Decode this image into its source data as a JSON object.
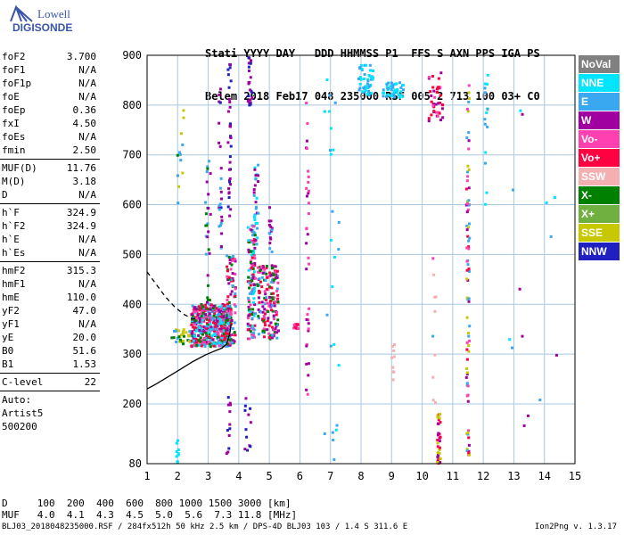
{
  "logo": {
    "line1": "Lowell",
    "line2": "DIGISONDE"
  },
  "header": {
    "labels": "Stati YYYY DAY   DDD HHMMSS P1  FFS S AXN PPS IGA PS",
    "values": "Belem 2018 Feb17 048 235000 RSF 005 2 713 100 03+ C0"
  },
  "params": {
    "g1": [
      [
        "foF2",
        "3.700"
      ],
      [
        "foF1",
        "N/A"
      ],
      [
        "foF1p",
        "N/A"
      ],
      [
        "foE",
        "N/A"
      ],
      [
        "foEp",
        "0.36"
      ],
      [
        "fxI",
        "4.50"
      ],
      [
        "foEs",
        "N/A"
      ],
      [
        "fmin",
        "2.50"
      ]
    ],
    "g2": [
      [
        "MUF(D)",
        "11.76"
      ],
      [
        "M(D)",
        "3.18"
      ],
      [
        "D",
        "N/A"
      ]
    ],
    "g3": [
      [
        "h`F",
        "324.9"
      ],
      [
        "h`F2",
        "324.9"
      ],
      [
        "h`E",
        "N/A"
      ],
      [
        "h`Es",
        "N/A"
      ]
    ],
    "g4": [
      [
        "hmF2",
        "315.3"
      ],
      [
        "hmF1",
        "N/A"
      ],
      [
        "hmE",
        "110.0"
      ],
      [
        "yF2",
        "47.0"
      ],
      [
        "yF1",
        "N/A"
      ],
      [
        "yE",
        "20.0"
      ],
      [
        "B0",
        "51.6"
      ],
      [
        "B1",
        "1.53"
      ]
    ],
    "clevel": [
      "C-level",
      "22"
    ],
    "auto1": "Auto:",
    "auto2": "Artist5",
    "auto3": "500200"
  },
  "legend": [
    {
      "label": "NoVal",
      "color": "#808080"
    },
    {
      "label": "NNE",
      "color": "#00e5ff"
    },
    {
      "label": "E",
      "color": "#3aa8f0"
    },
    {
      "label": "W",
      "color": "#a000a0"
    },
    {
      "label": "Vo-",
      "color": "#ff40b0"
    },
    {
      "label": "Vo+",
      "color": "#ff0040"
    },
    {
      "label": "SSW",
      "color": "#f4b0b0"
    },
    {
      "label": "X-",
      "color": "#008000"
    },
    {
      "label": "X+",
      "color": "#70b040"
    },
    {
      "label": "SSE",
      "color": "#c8c800"
    },
    {
      "label": "NNW",
      "color": "#2020c0"
    }
  ],
  "footer": {
    "row1": "D     100  200  400  600  800 1000 1500 3000 [km]",
    "row2": "MUF   4.0  4.1  4.3  4.5  5.0  5.6  7.3 11.8 [MHz]",
    "bottom": "BLJ03_2018048235000.RSF / 284fx512h 50 kHz 2.5 km / DPS-4D BLJ03 103 / 1.4 S 311.6 E",
    "version": "Ion2Png v. 1.3.17"
  },
  "chart_data": {
    "type": "scatter",
    "xlim": [
      1,
      15
    ],
    "ylim": [
      80,
      900
    ],
    "xticks": [
      1,
      2,
      3,
      4,
      5,
      6,
      7,
      8,
      9,
      10,
      11,
      12,
      13,
      14,
      15
    ],
    "yticks": [
      80,
      200,
      300,
      400,
      500,
      600,
      700,
      800,
      900
    ],
    "xlabel": "",
    "ylabel": "",
    "grid": true,
    "traces": [
      {
        "style": "solid",
        "x": [
          1.0,
          1.3,
          1.7,
          2.1,
          2.5,
          2.9,
          3.2,
          3.45,
          3.6,
          3.7,
          3.75
        ],
        "y": [
          230,
          240,
          255,
          270,
          285,
          298,
          306,
          312,
          320,
          340,
          360
        ]
      },
      {
        "style": "dashed",
        "x": [
          1.0,
          1.3,
          1.6,
          1.9,
          2.2,
          2.45,
          2.65
        ],
        "y": [
          465,
          440,
          415,
          395,
          380,
          372,
          370
        ]
      }
    ],
    "clusters": [
      {
        "x0": 2.45,
        "x1": 3.75,
        "y0": 315,
        "y1": 400,
        "n": 520,
        "palette": [
          "#ff40b0",
          "#ff0040",
          "#a000a0",
          "#3aa8f0",
          "#008000",
          "#00e5ff"
        ]
      },
      {
        "x0": 3.6,
        "x1": 3.9,
        "y0": 320,
        "y1": 500,
        "n": 80,
        "palette": [
          "#ff40b0",
          "#ff0040",
          "#a000a0",
          "#3aa8f0",
          "#008000"
        ]
      },
      {
        "x0": 4.3,
        "x1": 4.55,
        "y0": 330,
        "y1": 560,
        "n": 130,
        "palette": [
          "#ff40b0",
          "#ff0040",
          "#a000a0",
          "#3aa8f0",
          "#00e5ff",
          "#008000"
        ]
      },
      {
        "x0": 4.6,
        "x1": 5.3,
        "y0": 330,
        "y1": 480,
        "n": 170,
        "palette": [
          "#ff40b0",
          "#ff0040",
          "#a000a0",
          "#3aa8f0",
          "#008000"
        ]
      },
      {
        "x0": 5.8,
        "x1": 5.95,
        "y0": 350,
        "y1": 360,
        "n": 15,
        "palette": [
          "#ff0040",
          "#ff40b0"
        ]
      },
      {
        "x0": 1.8,
        "x1": 2.4,
        "y0": 320,
        "y1": 350,
        "n": 30,
        "palette": [
          "#008000",
          "#c8c800",
          "#3aa8f0"
        ]
      },
      {
        "x0": 2.9,
        "x1": 3.1,
        "y0": 380,
        "y1": 690,
        "n": 30,
        "palette": [
          "#3aa8f0",
          "#a000a0",
          "#008000"
        ]
      },
      {
        "x0": 3.65,
        "x1": 3.75,
        "y0": 560,
        "y1": 900,
        "n": 35,
        "palette": [
          "#a000a0",
          "#2020c0"
        ]
      },
      {
        "x0": 3.35,
        "x1": 3.45,
        "y0": 500,
        "y1": 840,
        "n": 25,
        "palette": [
          "#a000a0",
          "#2020c0",
          "#3aa8f0"
        ]
      },
      {
        "x0": 4.3,
        "x1": 4.45,
        "y0": 790,
        "y1": 900,
        "n": 25,
        "palette": [
          "#2020c0",
          "#a000a0"
        ]
      },
      {
        "x0": 4.5,
        "x1": 4.65,
        "y0": 520,
        "y1": 680,
        "n": 30,
        "palette": [
          "#3aa8f0",
          "#00e5ff",
          "#a000a0"
        ]
      },
      {
        "x0": 5.0,
        "x1": 5.1,
        "y0": 500,
        "y1": 600,
        "n": 15,
        "palette": [
          "#3aa8f0",
          "#a000a0"
        ]
      },
      {
        "x0": 6.2,
        "x1": 6.3,
        "y0": 200,
        "y1": 820,
        "n": 35,
        "palette": [
          "#a000a0",
          "#ff40b0"
        ]
      },
      {
        "x0": 7.9,
        "x1": 8.4,
        "y0": 820,
        "y1": 880,
        "n": 50,
        "palette": [
          "#3aa8f0",
          "#00e5ff"
        ]
      },
      {
        "x0": 8.7,
        "x1": 9.4,
        "y0": 815,
        "y1": 845,
        "n": 45,
        "palette": [
          "#3aa8f0",
          "#00e5ff"
        ]
      },
      {
        "x0": 10.2,
        "x1": 10.7,
        "y0": 760,
        "y1": 870,
        "n": 40,
        "palette": [
          "#ff0040",
          "#ff40b0",
          "#a000a0"
        ]
      },
      {
        "x0": 10.5,
        "x1": 10.6,
        "y0": 80,
        "y1": 180,
        "n": 35,
        "palette": [
          "#c8c800",
          "#a000a0",
          "#ff0040"
        ]
      },
      {
        "x0": 11.45,
        "x1": 11.55,
        "y0": 80,
        "y1": 880,
        "n": 80,
        "palette": [
          "#c8c800",
          "#a000a0",
          "#ff0040",
          "#ff40b0",
          "#3aa8f0"
        ]
      },
      {
        "x0": 12.05,
        "x1": 12.15,
        "y0": 560,
        "y1": 880,
        "n": 15,
        "palette": [
          "#3aa8f0",
          "#00e5ff"
        ]
      },
      {
        "x0": 10.35,
        "x1": 10.45,
        "y0": 180,
        "y1": 500,
        "n": 10,
        "palette": [
          "#ff40b0",
          "#f4b0b0",
          "#3aa8f0"
        ]
      },
      {
        "x0": 9.0,
        "x1": 9.1,
        "y0": 245,
        "y1": 320,
        "n": 10,
        "palette": [
          "#f4b0b0"
        ]
      },
      {
        "x0": 2.0,
        "x1": 2.3,
        "y0": 600,
        "y1": 800,
        "n": 12,
        "palette": [
          "#c8c800",
          "#3aa8f0",
          "#008000"
        ]
      },
      {
        "x0": 3.6,
        "x1": 3.75,
        "y0": 100,
        "y1": 220,
        "n": 12,
        "palette": [
          "#a000a0",
          "#2020c0"
        ]
      },
      {
        "x0": 4.2,
        "x1": 4.4,
        "y0": 90,
        "y1": 220,
        "n": 12,
        "palette": [
          "#a000a0",
          "#2020c0"
        ]
      },
      {
        "x0": 1.95,
        "x1": 2.05,
        "y0": 80,
        "y1": 130,
        "n": 10,
        "palette": [
          "#00e5ff"
        ]
      },
      {
        "x0": 12.8,
        "x1": 14.5,
        "y0": 80,
        "y1": 800,
        "n": 14,
        "palette": [
          "#3aa8f0",
          "#a000a0",
          "#00e5ff"
        ]
      },
      {
        "x0": 6.8,
        "x1": 7.3,
        "y0": 80,
        "y1": 900,
        "n": 25,
        "palette": [
          "#3aa8f0",
          "#00e5ff"
        ]
      }
    ]
  }
}
